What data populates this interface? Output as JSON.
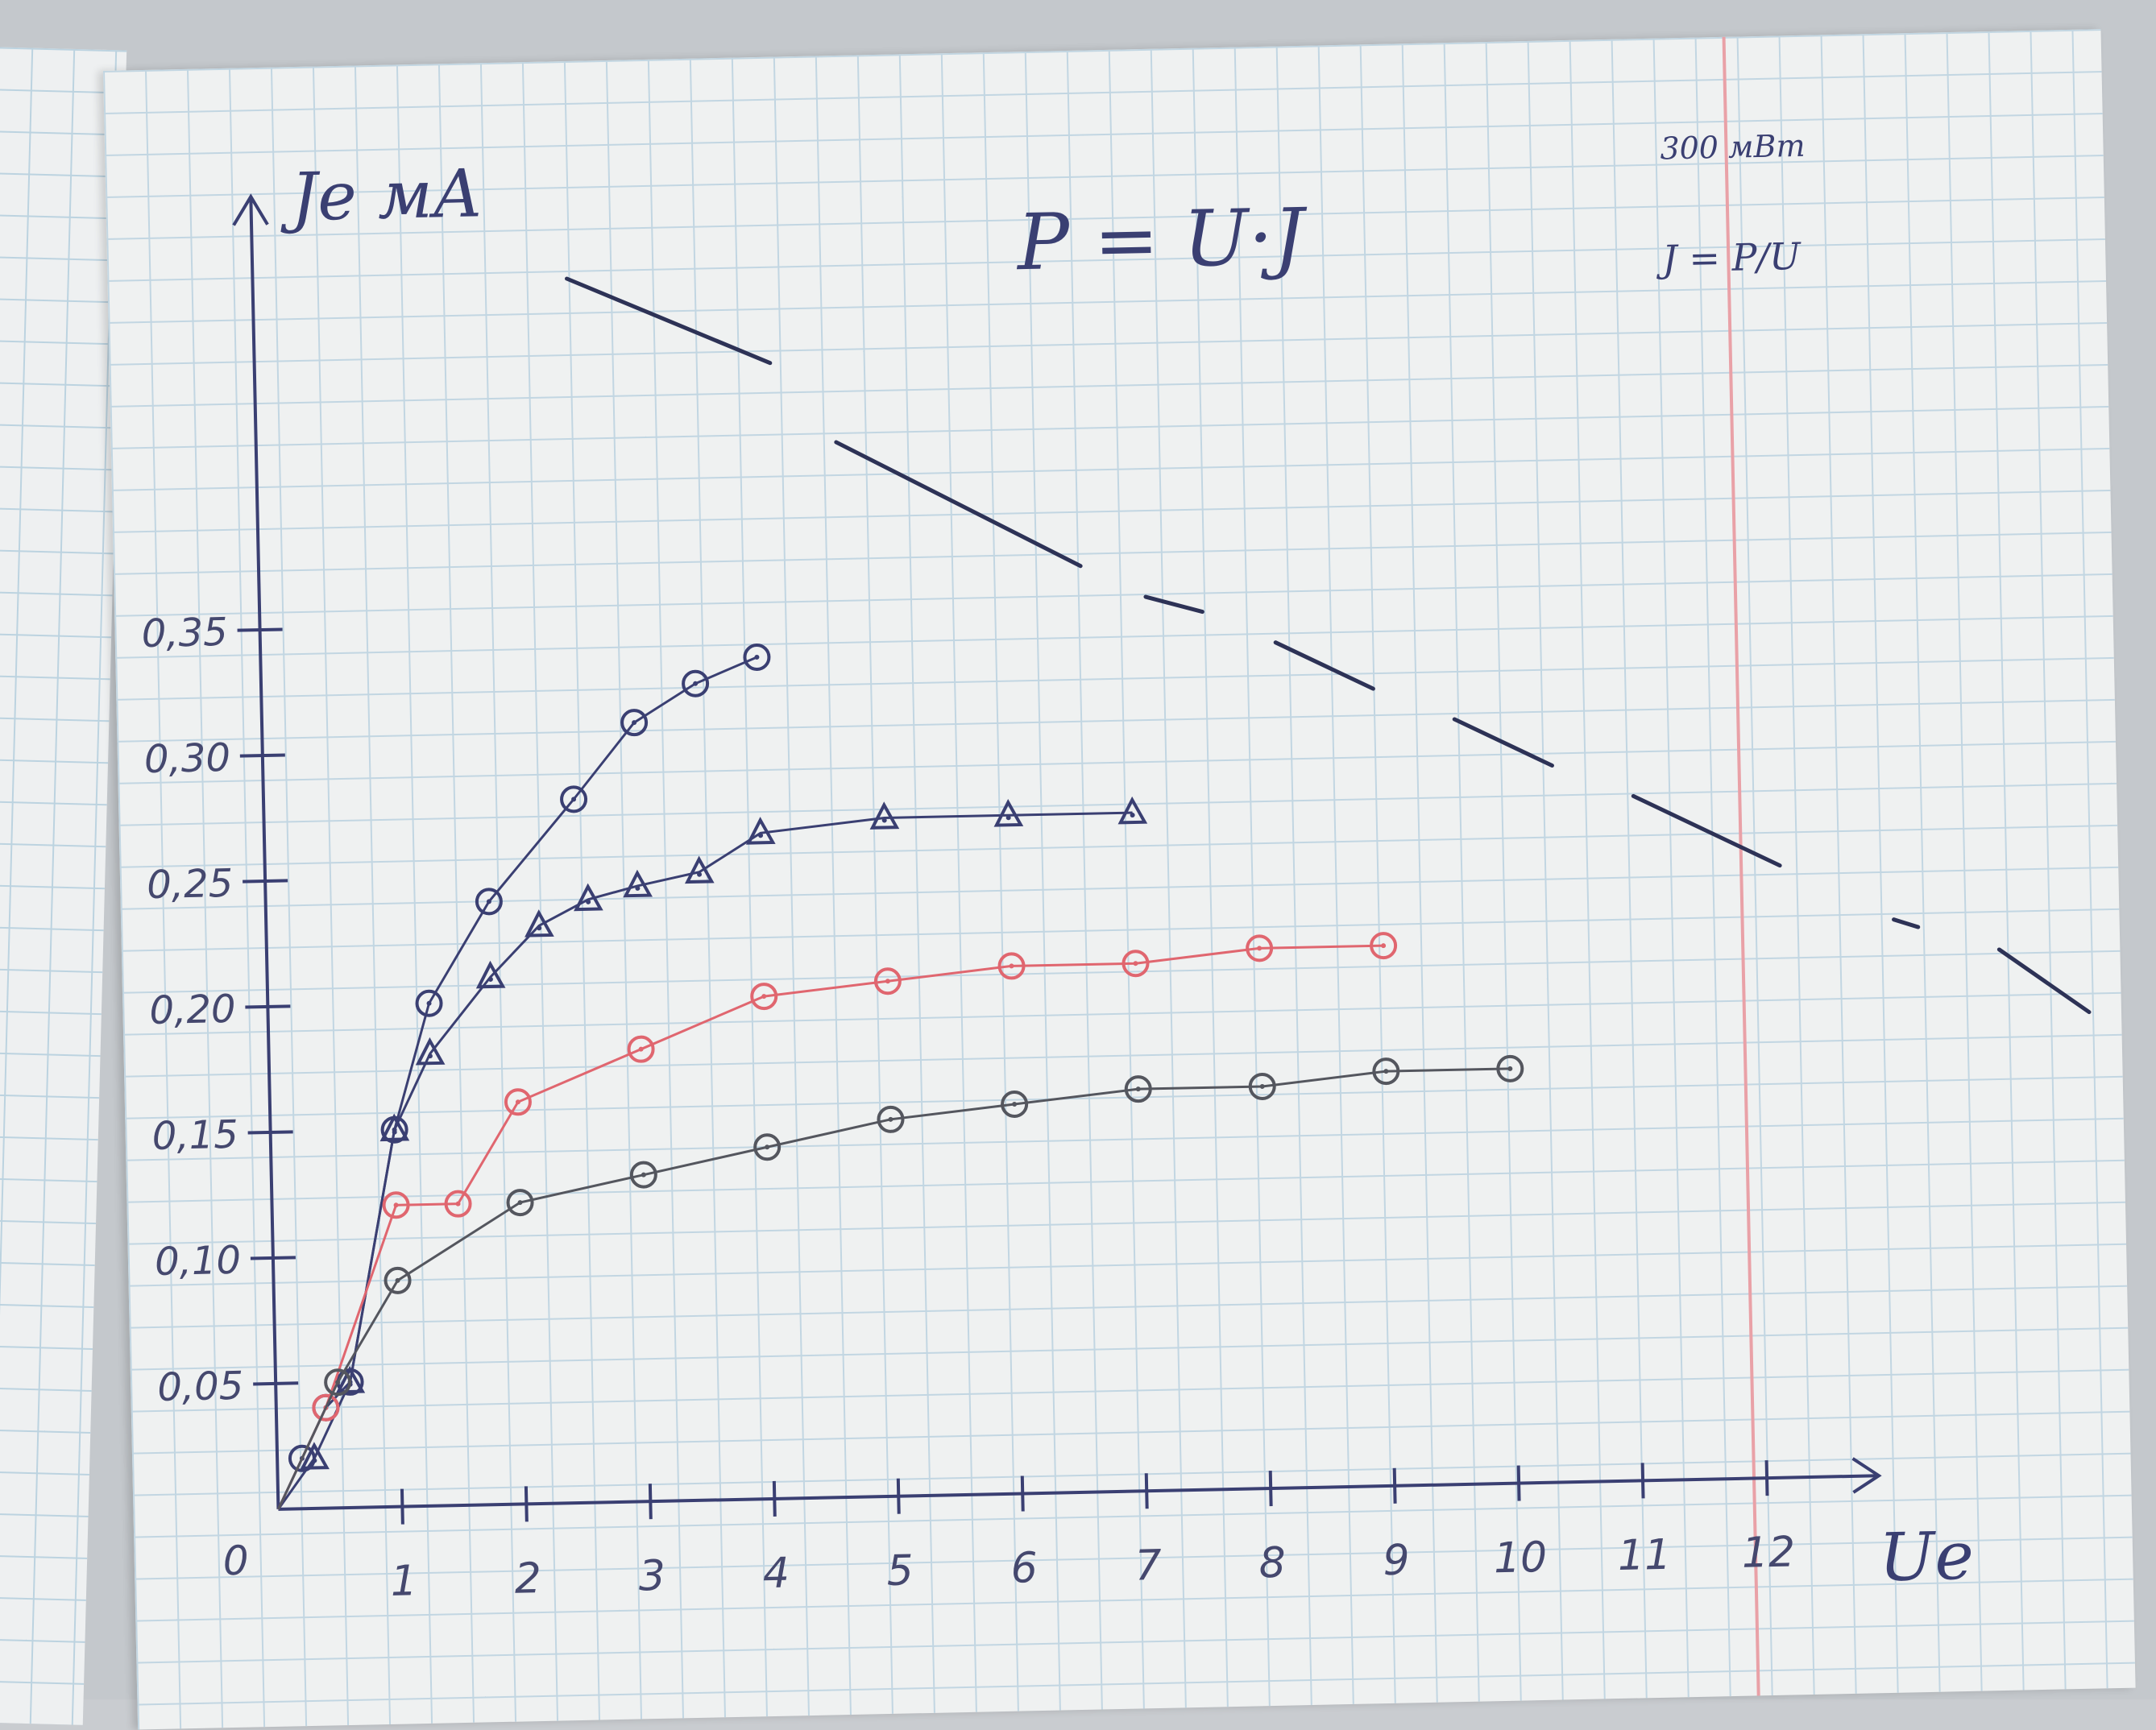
{
  "chart_data": {
    "type": "line",
    "ylabel": "Je мА",
    "xlabel": "Ue",
    "origin_label": "0",
    "annotations": [
      "P = U·J",
      "300 мВт",
      "J = P/U"
    ],
    "x_ticks": [
      1,
      2,
      3,
      4,
      5,
      6,
      7,
      8,
      9,
      10,
      11,
      12
    ],
    "y_ticks": [
      "0,05",
      "0,10",
      "0,15",
      "0,20",
      "0,25",
      "0,30",
      "0,35"
    ],
    "xlim": [
      0,
      12.5
    ],
    "ylim": [
      0,
      0.38
    ],
    "series": [
      {
        "marker": "circle",
        "color": "#3a3f72",
        "x": [
          0,
          0.2,
          0.4,
          0.6,
          1.0,
          1.3,
          1.8,
          2.5,
          3.0,
          3.5,
          4.0
        ],
        "y": [
          0,
          0.02,
          0.04,
          0.05,
          0.15,
          0.2,
          0.24,
          0.28,
          0.31,
          0.325,
          0.335
        ]
      },
      {
        "marker": "triangle",
        "color": "#3a3f72",
        "x": [
          0,
          0.3,
          0.6,
          1.0,
          1.3,
          1.8,
          2.2,
          2.6,
          3.0,
          3.5,
          4.0,
          5.0,
          6.0,
          7.0
        ],
        "y": [
          0,
          0.02,
          0.05,
          0.15,
          0.18,
          0.21,
          0.23,
          0.24,
          0.245,
          0.25,
          0.265,
          0.27,
          0.27,
          0.27
        ]
      },
      {
        "marker": "circle",
        "color": "#e0666f",
        "x": [
          0,
          0.4,
          1.0,
          1.5,
          2.0,
          3.0,
          4.0,
          5.0,
          6.0,
          7.0,
          8.0,
          9.0
        ],
        "y": [
          0,
          0.04,
          0.12,
          0.12,
          0.16,
          0.18,
          0.2,
          0.205,
          0.21,
          0.21,
          0.215,
          0.215
        ]
      },
      {
        "marker": "circle",
        "color": "#54565e",
        "x": [
          0,
          0.5,
          1.0,
          2.0,
          3.0,
          4.0,
          5.0,
          6.0,
          7.0,
          8.0,
          9.0,
          10.0
        ],
        "y": [
          0,
          0.05,
          0.09,
          0.12,
          0.13,
          0.14,
          0.15,
          0.155,
          0.16,
          0.16,
          0.165,
          0.165
        ]
      }
    ],
    "hyperbola_label": "300 мВт",
    "grid": true
  }
}
